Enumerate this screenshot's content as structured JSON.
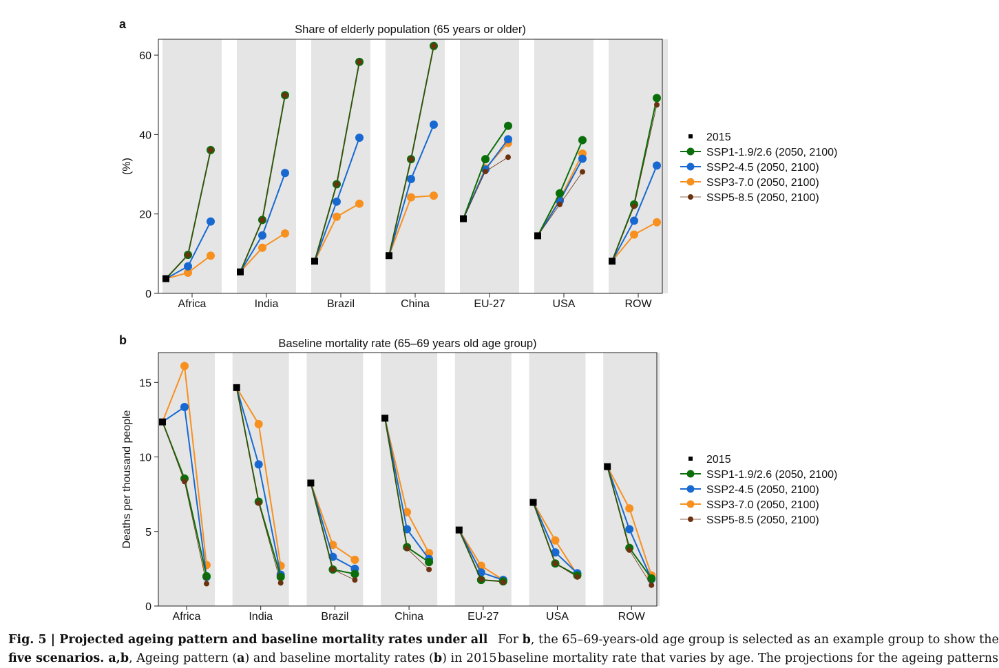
{
  "panels": [
    {
      "id": "a",
      "label": "a",
      "title": "Share of elderly population (65 years or older)",
      "ylabel": "(%)",
      "ylim": [
        0,
        64
      ],
      "yticks": [
        0,
        20,
        40,
        60
      ]
    },
    {
      "id": "b",
      "label": "b",
      "title": "Baseline mortality rate (65–69 years old age group)",
      "ylabel": "Deaths per thousand people",
      "ylim": [
        0,
        17
      ],
      "yticks": [
        0,
        5,
        10,
        15
      ]
    }
  ],
  "legend": {
    "entries": [
      {
        "key": "base",
        "label": "2015"
      },
      {
        "key": "ssp1",
        "label": "SSP1-1.9/2.6 (2050, 2100)"
      },
      {
        "key": "ssp2",
        "label": "SSP2-4.5 (2050, 2100)"
      },
      {
        "key": "ssp3",
        "label": "SSP3-7.0 (2050, 2100)"
      },
      {
        "key": "ssp5",
        "label": "SSP5-8.5 (2050, 2100)"
      }
    ]
  },
  "colors": {
    "base": "#000000",
    "ssp1": "#0a6e0a",
    "ssp2": "#1769d1",
    "ssp3": "#f7901e",
    "ssp5": "#6b3210",
    "panel_bg": "#e5e5e5"
  },
  "chart_data": [
    {
      "type": "line",
      "panel": "a",
      "title": "Share of elderly population (65 years or older)",
      "ylabel": "(%)",
      "ylim": [
        0,
        64
      ],
      "categories": [
        "Africa",
        "India",
        "Brazil",
        "China",
        "EU-27",
        "USA",
        "ROW"
      ],
      "base_2015": [
        3.7,
        5.4,
        8.1,
        9.5,
        18.8,
        14.5,
        8.1
      ],
      "series": [
        {
          "key": "ssp1",
          "name": "SSP1-1.9/2.6 (2050, 2100)",
          "values": [
            [
              9.7,
              36.1
            ],
            [
              18.5,
              49.9
            ],
            [
              27.5,
              58.3
            ],
            [
              33.8,
              62.3
            ],
            [
              33.8,
              42.2
            ],
            [
              25.2,
              38.6
            ],
            [
              22.4,
              49.2
            ]
          ]
        },
        {
          "key": "ssp2",
          "name": "SSP2-4.5 (2050, 2100)",
          "values": [
            [
              6.8,
              18.1
            ],
            [
              14.6,
              30.3
            ],
            [
              23.1,
              39.2
            ],
            [
              28.8,
              42.5
            ],
            [
              31.2,
              38.8
            ],
            [
              23.3,
              33.9
            ],
            [
              18.3,
              32.2
            ]
          ]
        },
        {
          "key": "ssp3",
          "name": "SSP3-7.0 (2050, 2100)",
          "values": [
            [
              5.2,
              9.5
            ],
            [
              11.5,
              15.1
            ],
            [
              19.3,
              22.6
            ],
            [
              24.2,
              24.6
            ],
            [
              31.5,
              37.9
            ],
            [
              23.6,
              35.2
            ],
            [
              14.8,
              17.9
            ]
          ]
        },
        {
          "key": "ssp5",
          "name": "SSP5-8.5 (2050, 2100)",
          "values": [
            [
              9.7,
              36.1
            ],
            [
              18.5,
              49.9
            ],
            [
              27.5,
              58.3
            ],
            [
              33.8,
              62.3
            ],
            [
              30.7,
              34.3
            ],
            [
              22.4,
              30.6
            ],
            [
              21.9,
              47.5
            ]
          ]
        }
      ]
    },
    {
      "type": "line",
      "panel": "b",
      "title": "Baseline mortality rate (65–69 years old age group)",
      "ylabel": "Deaths per thousand people",
      "ylim": [
        0,
        17
      ],
      "categories": [
        "Africa",
        "India",
        "Brazil",
        "China",
        "EU-27",
        "USA",
        "ROW"
      ],
      "base_2015": [
        12.35,
        14.65,
        8.25,
        12.6,
        5.1,
        6.95,
        9.35
      ],
      "series": [
        {
          "key": "ssp1",
          "name": "SSP1-1.9/2.6 (2050, 2100)",
          "values": [
            [
              8.55,
              2.0
            ],
            [
              7.0,
              1.95
            ],
            [
              2.45,
              2.15
            ],
            [
              3.95,
              2.95
            ],
            [
              1.75,
              1.65
            ],
            [
              2.85,
              2.05
            ],
            [
              3.9,
              1.85
            ]
          ]
        },
        {
          "key": "ssp2",
          "name": "SSP2-4.5 (2050, 2100)",
          "values": [
            [
              13.35,
              1.95
            ],
            [
              9.5,
              2.1
            ],
            [
              3.3,
              2.5
            ],
            [
              5.15,
              3.15
            ],
            [
              2.25,
              1.75
            ],
            [
              3.6,
              2.2
            ],
            [
              5.15,
              1.8
            ]
          ]
        },
        {
          "key": "ssp3",
          "name": "SSP3-7.0 (2050, 2100)",
          "values": [
            [
              16.1,
              2.75
            ],
            [
              12.2,
              2.7
            ],
            [
              4.1,
              3.1
            ],
            [
              6.3,
              3.55
            ],
            [
              2.7,
              1.75
            ],
            [
              4.4,
              2.1
            ],
            [
              6.55,
              2.05
            ]
          ]
        },
        {
          "key": "ssp5",
          "name": "SSP5-8.5 (2050, 2100)",
          "values": [
            [
              8.35,
              1.5
            ],
            [
              6.9,
              1.55
            ],
            [
              2.45,
              1.75
            ],
            [
              3.85,
              2.45
            ],
            [
              1.8,
              1.6
            ],
            [
              2.85,
              1.95
            ],
            [
              3.75,
              1.4
            ]
          ]
        }
      ]
    }
  ],
  "caption": {
    "left_line1_bold": "Fig. 5 | Projected ageing pattern and baseline mortality rates under all",
    "left_line2_bold": "five scenarios. a,b",
    "left_line2_t1": ", Ageing pattern (",
    "left_line2_b1": "a",
    "left_line2_t2": ") and baseline mortality rates (",
    "left_line2_b2": "b",
    "left_line2_t3": ") in 2015",
    "right_line1_t1": "For ",
    "right_line1_b1": "b",
    "right_line1_t2": ", the 65–69-years-old age group is selected as an example group to show the",
    "right_line2": "baseline mortality rate that varies by age. The projections for the ageing patterns"
  }
}
